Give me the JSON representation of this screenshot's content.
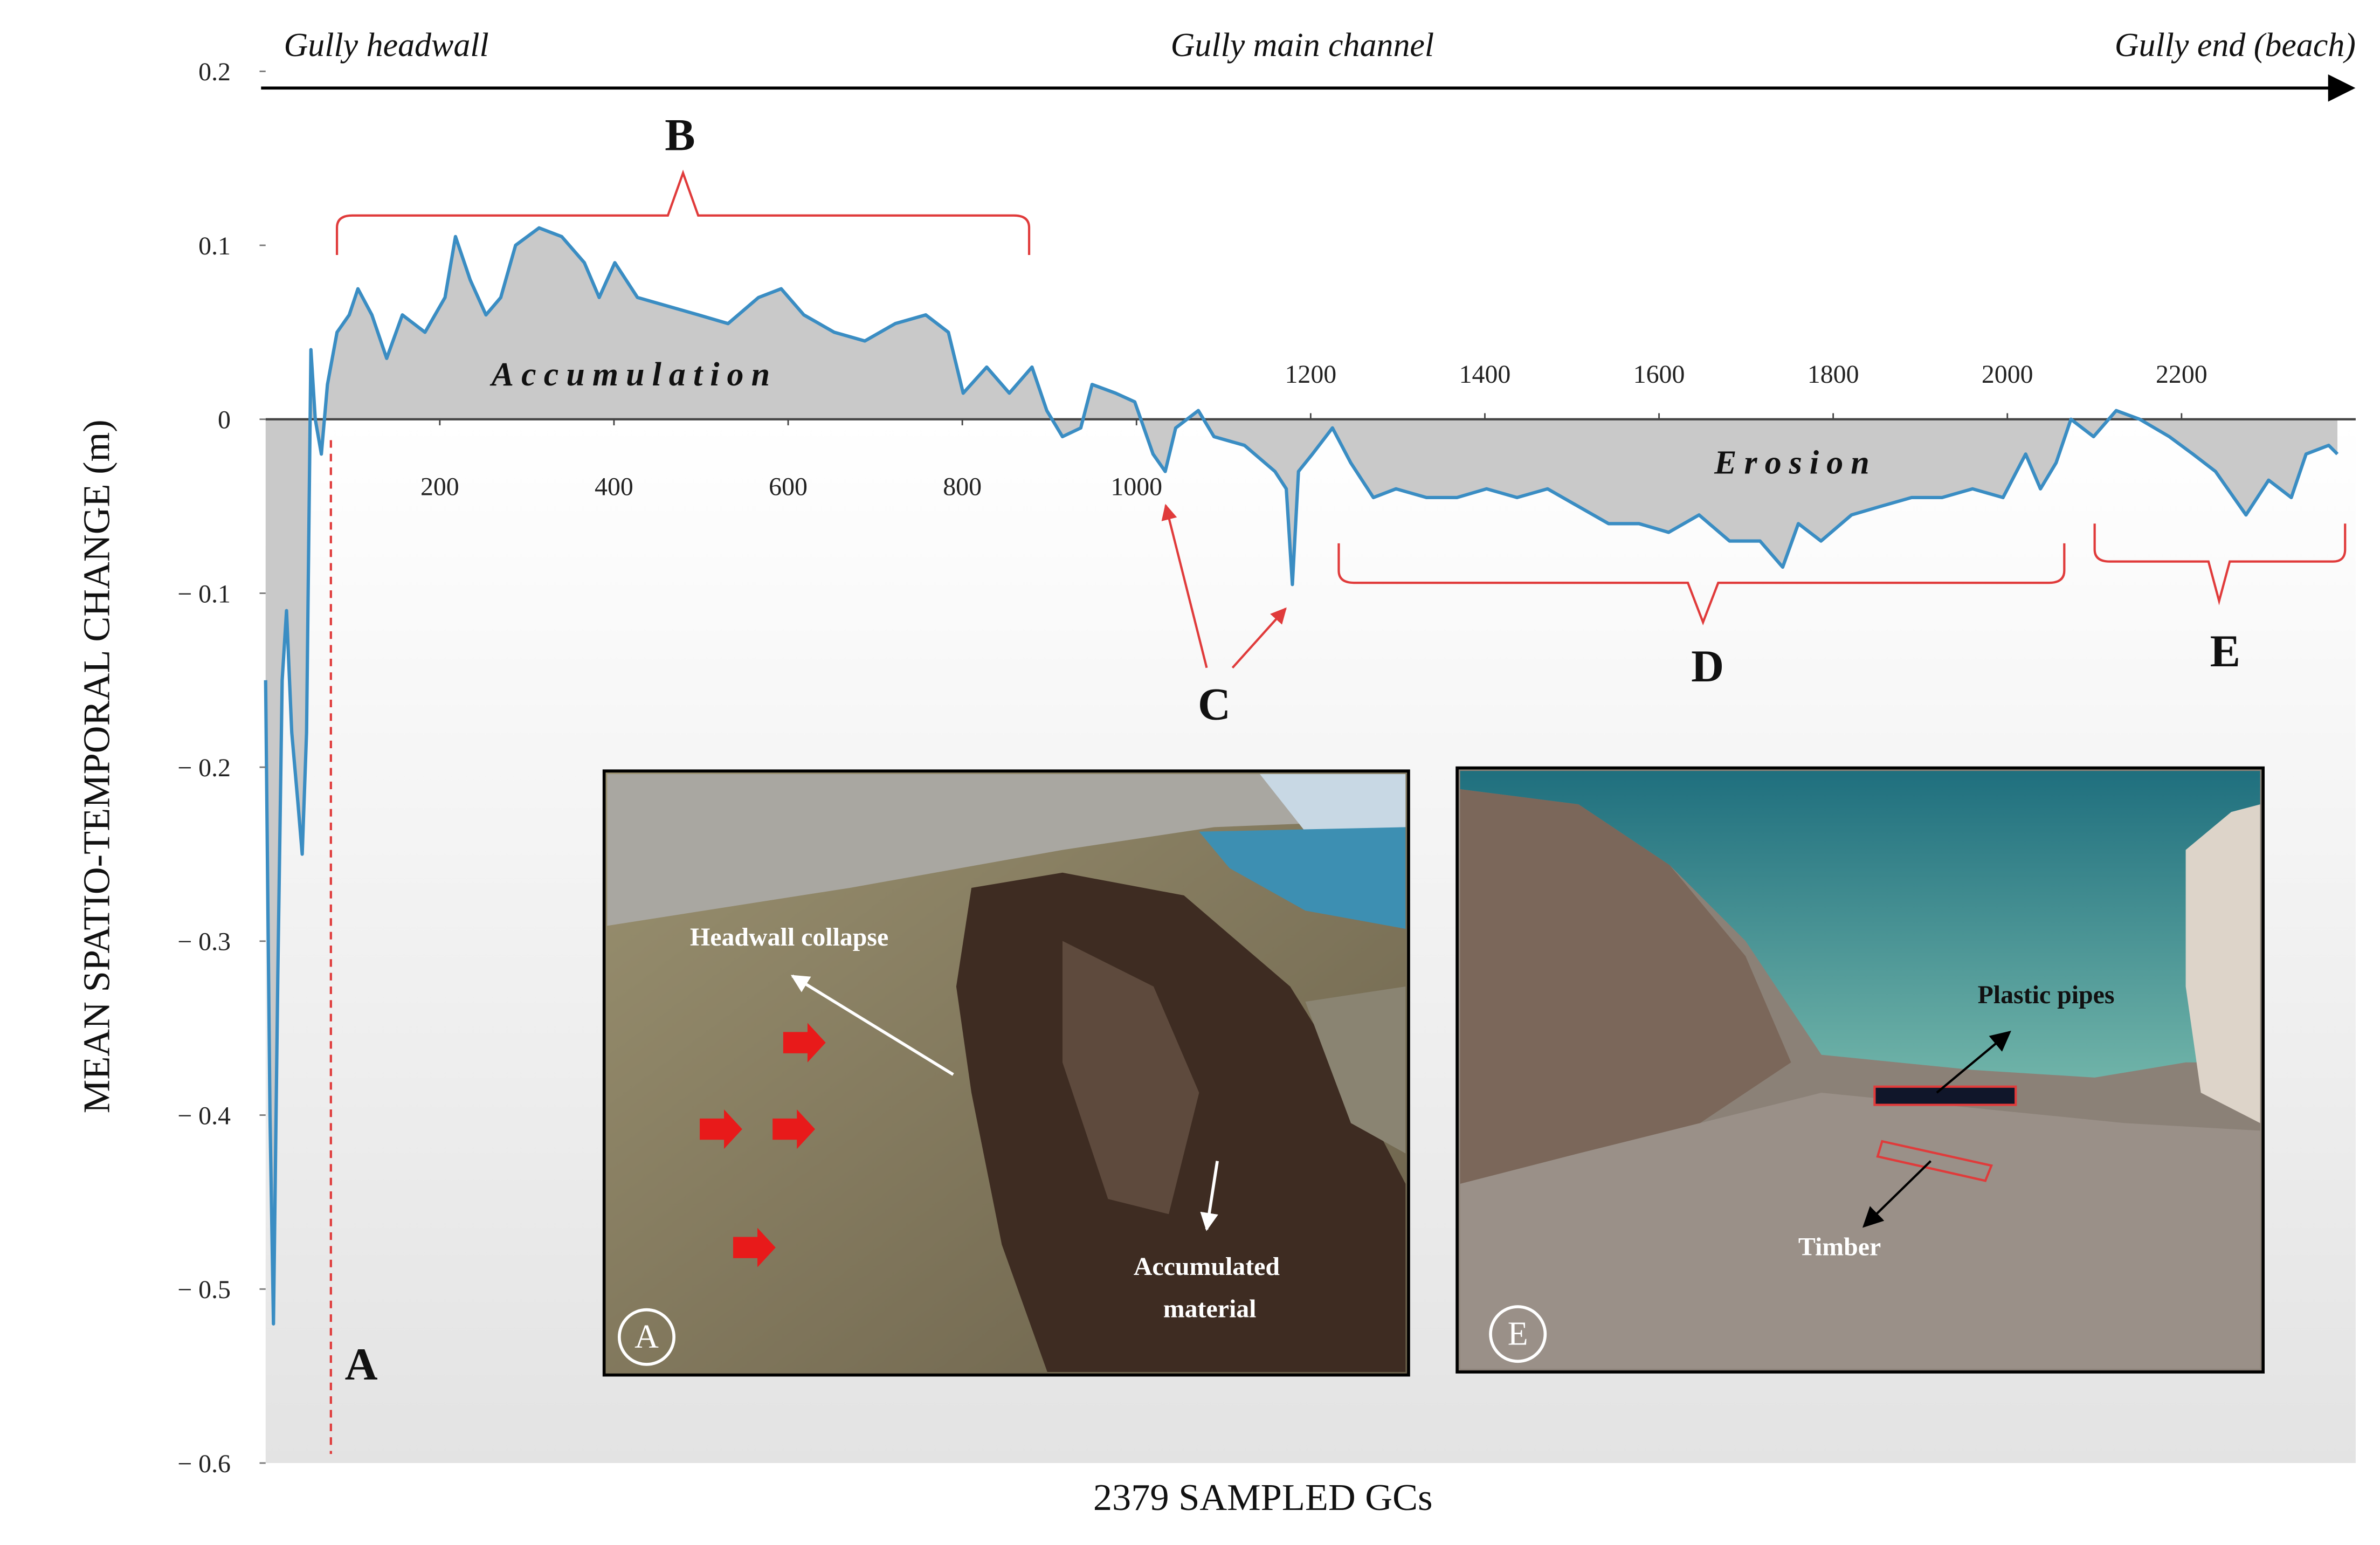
{
  "chart_data": {
    "type": "area",
    "xlabel": "2379 SAMPLED GCs",
    "ylabel": "MEAN SPATIO-TEMPORAL CHANGE (m)",
    "xlim": [
      0,
      2400
    ],
    "ylim": [
      -0.6,
      0.2
    ],
    "xticks": [
      200,
      400,
      600,
      800,
      1000,
      1200,
      1400,
      1600,
      1800,
      2000,
      2200
    ],
    "yticks": [
      0.2,
      0.1,
      0,
      {
        "value": -0.1,
        "label": "− 0.1"
      },
      {
        "value": -0.2,
        "label": "− 0.2"
      },
      {
        "value": -0.3,
        "label": "− 0.3"
      },
      {
        "value": -0.4,
        "label": "− 0.4"
      },
      {
        "value": -0.5,
        "label": "− 0.5"
      },
      {
        "value": -0.6,
        "label": "− 0.6"
      }
    ],
    "color": "#3a8dc3",
    "fill_color": "#c9c9c9",
    "x": [
      0,
      5,
      9,
      14,
      19,
      24,
      30,
      37,
      42,
      47,
      52,
      57,
      64,
      71,
      82,
      96,
      106,
      122,
      139,
      157,
      183,
      206,
      218,
      235,
      253,
      270,
      287,
      314,
      340,
      366,
      383,
      401,
      427,
      462,
      497,
      531,
      566,
      592,
      618,
      653,
      688,
      723,
      758,
      784,
      801,
      828,
      854,
      880,
      897,
      915,
      936,
      949,
      976,
      998,
      1019,
      1033,
      1045,
      1071,
      1089,
      1124,
      1159,
      1172,
      1179,
      1186,
      1202,
      1225,
      1246,
      1272,
      1298,
      1333,
      1368,
      1402,
      1437,
      1472,
      1507,
      1542,
      1577,
      1611,
      1646,
      1681,
      1716,
      1742,
      1760,
      1786,
      1821,
      1855,
      1890,
      1925,
      1960,
      1995,
      2021,
      2038,
      2056,
      2073,
      2099,
      2125,
      2152,
      2186,
      2213,
      2239,
      2274,
      2300,
      2326,
      2343,
      2369,
      2379
    ],
    "values": [
      -0.15,
      -0.4,
      -0.52,
      -0.32,
      -0.15,
      -0.11,
      -0.18,
      -0.22,
      -0.25,
      -0.18,
      0.04,
      0.0,
      -0.02,
      0.02,
      0.05,
      0.06,
      0.075,
      0.06,
      0.035,
      0.06,
      0.05,
      0.07,
      0.105,
      0.08,
      0.06,
      0.07,
      0.1,
      0.11,
      0.105,
      0.09,
      0.07,
      0.09,
      0.07,
      0.065,
      0.06,
      0.055,
      0.07,
      0.075,
      0.06,
      0.05,
      0.045,
      0.055,
      0.06,
      0.05,
      0.015,
      0.03,
      0.015,
      0.03,
      0.005,
      -0.01,
      -0.005,
      0.02,
      0.015,
      0.01,
      -0.02,
      -0.03,
      -0.005,
      0.005,
      -0.01,
      -0.015,
      -0.03,
      -0.04,
      -0.095,
      -0.03,
      -0.02,
      -0.005,
      -0.025,
      -0.045,
      -0.04,
      -0.045,
      -0.045,
      -0.04,
      -0.045,
      -0.04,
      -0.05,
      -0.06,
      -0.06,
      -0.065,
      -0.055,
      -0.07,
      -0.07,
      -0.085,
      -0.06,
      -0.07,
      -0.055,
      -0.05,
      -0.045,
      -0.045,
      -0.04,
      -0.045,
      -0.02,
      -0.04,
      -0.025,
      0.0,
      -0.01,
      0.005,
      0.0,
      -0.01,
      -0.02,
      -0.03,
      -0.055,
      -0.035,
      -0.045,
      -0.02,
      -0.015,
      -0.02
    ],
    "annotations": [
      "Gully headwall",
      "Gully main channel",
      "Gully end (beach)",
      "B",
      "Accumulation",
      "C",
      "Erosion",
      "D",
      "E",
      "A"
    ],
    "photos": [
      {
        "label": "A",
        "captions": [
          "Headwall collapse",
          "Accumulated",
          "material"
        ]
      },
      {
        "label": "E",
        "captions": [
          "Plastic pipes",
          "Timber"
        ]
      }
    ]
  }
}
